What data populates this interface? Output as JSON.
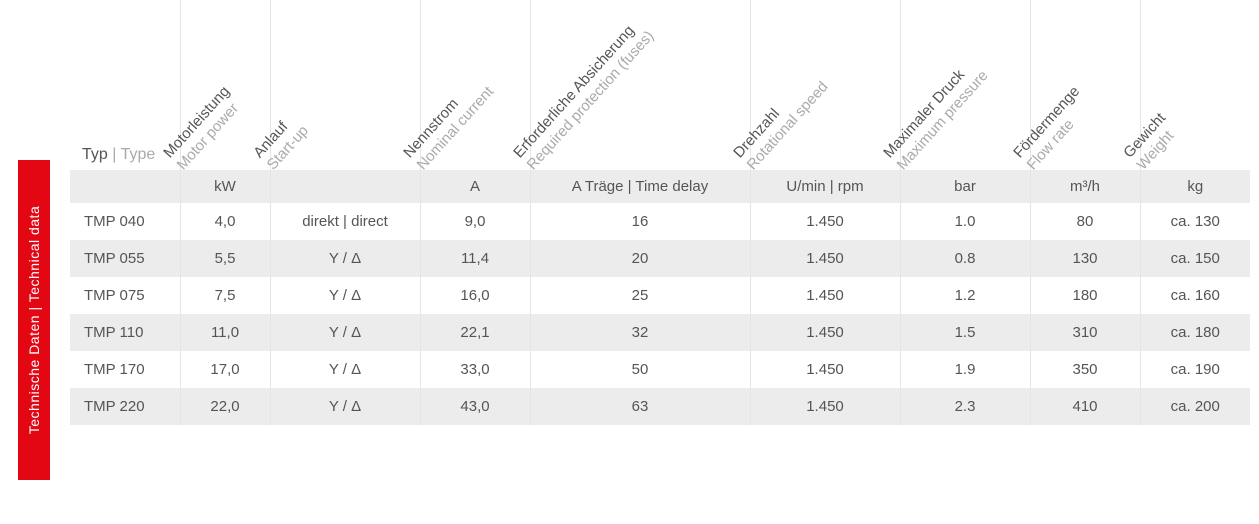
{
  "side": {
    "de": "Technische Daten",
    "en": "Technical data",
    "sep": " | "
  },
  "typeHeader": {
    "de": "Typ",
    "en": "Type",
    "sep": " | "
  },
  "columns": [
    {
      "de": "Motorleistung",
      "en": "Motor power",
      "unit": "kW"
    },
    {
      "de": "Anlauf",
      "en": "Start-up",
      "unit": ""
    },
    {
      "de": "Nennstrom",
      "en": "Nominal current",
      "unit": "A"
    },
    {
      "de": "Erforderliche Absicherung",
      "en": "Required protection (fuses)",
      "unit": "A Träge | Time delay"
    },
    {
      "de": "Drehzahl",
      "en": "Rotational speed",
      "unit": "U/min | rpm"
    },
    {
      "de": "Maximaler Druck",
      "en": "Maximum pressure",
      "unit": "bar"
    },
    {
      "de": "Fördermenge",
      "en": "Flow rate",
      "unit": "m³/h"
    },
    {
      "de": "Gewicht",
      "en": "Weight",
      "unit": "kg"
    }
  ],
  "rows": [
    {
      "type": "TMP 040",
      "v": [
        "4,0",
        "direkt | direct",
        "9,0",
        "16",
        "1.450",
        "1.0",
        "80",
        "ca. 130"
      ]
    },
    {
      "type": "TMP 055",
      "v": [
        "5,5",
        "Y / Δ",
        "11,4",
        "20",
        "1.450",
        "0.8",
        "130",
        "ca. 150"
      ]
    },
    {
      "type": "TMP 075",
      "v": [
        "7,5",
        "Y / Δ",
        "16,0",
        "25",
        "1.450",
        "1.2",
        "180",
        "ca. 160"
      ]
    },
    {
      "type": "TMP 110",
      "v": [
        "11,0",
        "Y / Δ",
        "22,1",
        "32",
        "1.450",
        "1.5",
        "310",
        "ca. 180"
      ]
    },
    {
      "type": "TMP 170",
      "v": [
        "17,0",
        "Y / Δ",
        "33,0",
        "50",
        "1.450",
        "1.9",
        "350",
        "ca. 190"
      ]
    },
    {
      "type": "TMP 220",
      "v": [
        "22,0",
        "Y / Δ",
        "43,0",
        "63",
        "1.450",
        "2.3",
        "410",
        "ca. 200"
      ]
    }
  ],
  "style": {
    "font": "Arial",
    "font_size_body": 15,
    "font_size_side": 14,
    "text_color": "#555555",
    "muted_color": "#aaaaaa",
    "stripe_bg": "#ececec",
    "row_bg": "#ffffff",
    "border_color": "#e5e5e5",
    "accent_bg": "#e30613",
    "accent_text": "#ffffff",
    "header_rotation_deg": -48
  }
}
